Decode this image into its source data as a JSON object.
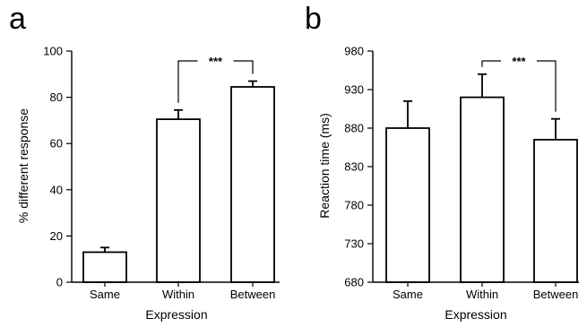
{
  "chart_data": [
    {
      "type": "bar",
      "panel_label": "a",
      "categories": [
        "Same",
        "Within",
        "Between"
      ],
      "values": [
        13,
        70.5,
        84.5
      ],
      "errors": [
        2,
        4,
        2.5
      ],
      "xlabel": "Expression",
      "ylabel": "% different response",
      "ylim": [
        0,
        100
      ],
      "yticks": [
        "0",
        "20",
        "40",
        "60",
        "80",
        "100"
      ],
      "significance": {
        "between": [
          "Within",
          "Between"
        ],
        "label": "***"
      },
      "grid": false,
      "legend": "none"
    },
    {
      "type": "bar",
      "panel_label": "b",
      "categories": [
        "Same",
        "Within",
        "Between"
      ],
      "values": [
        880,
        920,
        865
      ],
      "errors": [
        35,
        30,
        27
      ],
      "xlabel": "Expression",
      "ylabel": "Reaction time (ms)",
      "ylim": [
        680,
        980
      ],
      "yticks": [
        "680",
        "730",
        "780",
        "830",
        "880",
        "930",
        "980"
      ],
      "significance": {
        "between": [
          "Within",
          "Between"
        ],
        "label": "***"
      },
      "grid": false,
      "legend": "none"
    }
  ]
}
